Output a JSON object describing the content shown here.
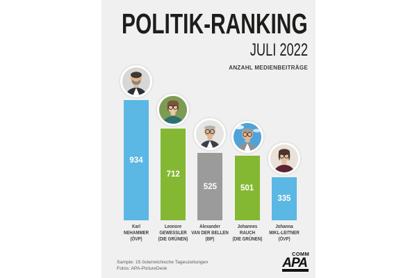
{
  "poster": {
    "title": "POLITIK-RANKING",
    "subtitle": "JULI 2022",
    "tagline": "ANZAHL MEDIENBEITRÄGE",
    "footer": {
      "sample_line": "Sample: 15 österreichische Tageszeitungen",
      "photos_line": "Fotos: APA-PictureDesk",
      "logo_main": "APA",
      "logo_sub": "COMM"
    },
    "colors": {
      "page": "#ffffff",
      "poster_background": "#f1f0f1",
      "bar_blue": "#5bb7e3",
      "bar_green": "#84b832",
      "bar_gray": "#9b9b9b",
      "title_text": "#1d1d1b",
      "value_label_text": "#ffffff",
      "category_text": "#3e3e3d",
      "note_text": "#5a5a59"
    }
  },
  "chart_data": {
    "type": "bar",
    "title": "POLITIK-RANKING",
    "subtitle": "JULI 2022",
    "ylabel": "ANZAHL MEDIENBEITRÄGE",
    "xlabel": "",
    "categories": [
      "Karl NEHAMMER (ÖVP)",
      "Leonore GEWESSLER (DIE GRÜNEN)",
      "Alexander VAN DER BELLEN (BP)",
      "Johannes RAUCH (DIE GRÜNEN)",
      "Johanna MIKL-LEITNER (ÖVP)"
    ],
    "values": [
      934,
      712,
      525,
      501,
      335
    ],
    "bar_colors": [
      "#5bb7e3",
      "#84b832",
      "#9b9b9b",
      "#84b832",
      "#5bb7e3"
    ],
    "value_labels": "inside bars, white, vertically centered",
    "axes_visible": false,
    "grid": false,
    "legend": "none",
    "annotations": "circular portrait photo above each bar",
    "source_note": "Sample: 15 österreichische Tageszeitungen"
  },
  "people": [
    {
      "first": "Karl",
      "last": "NEHAMMER",
      "party": "(ÖVP)",
      "value": 934,
      "bar_color": "#5bb7e3",
      "photo": "karl-nehammer-portrait",
      "avatar": {
        "bg": "#d8d7d3",
        "hair": "#3f3833",
        "skin": "#e3b38c",
        "top": "#2c3038",
        "beard": "#8d857b",
        "shirt": true,
        "glasses": false,
        "thinHair": false,
        "sideHair": false,
        "cloud": false
      }
    },
    {
      "first": "Leonore",
      "last": "GEWESSLER",
      "party": "(DIE GRÜNEN)",
      "value": 712,
      "bar_color": "#84b832",
      "photo": "leonore-gewessler-portrait",
      "avatar": {
        "bg": "#7c9c52",
        "hair": "#7b5639",
        "skin": "#eec6a4",
        "top": "#2f6f72",
        "beard": null,
        "shirt": false,
        "glasses": true,
        "thinHair": false,
        "sideHair": true,
        "cloud": false
      }
    },
    {
      "first": "Alexander",
      "last": "VAN DER BELLEN",
      "party": "(BP)",
      "value": 525,
      "bar_color": "#9b9b9b",
      "photo": "alexander-van-der-bellen-portrait",
      "avatar": {
        "bg": "#e6e5e2",
        "hair": "#b3b0a9",
        "skin": "#dfb692",
        "top": "#3a3f4a",
        "beard": null,
        "shirt": true,
        "glasses": true,
        "thinHair": true,
        "sideHair": false,
        "cloud": false
      }
    },
    {
      "first": "Johannes",
      "last": "RAUCH",
      "party": "(DIE GRÜNEN)",
      "value": 501,
      "bar_color": "#84b832",
      "photo": "johannes-rauch-portrait",
      "avatar": {
        "bg": "#4fa3d8",
        "hair": "#9f9c97",
        "skin": "#e2b793",
        "top": "#8e9296",
        "beard": null,
        "shirt": true,
        "glasses": true,
        "thinHair": true,
        "sideHair": false,
        "cloud": true
      }
    },
    {
      "first": "Johanna",
      "last": "MIKL-LEITNER",
      "party": "(ÖVP)",
      "value": 335,
      "bar_color": "#5bb7e3",
      "photo": "johanna-mikl-leitner-portrait",
      "avatar": {
        "bg": "#e9e2d8",
        "hair": "#4e342a",
        "skin": "#e8bfa0",
        "top": "#5a2430",
        "beard": null,
        "shirt": false,
        "glasses": true,
        "thinHair": false,
        "sideHair": true,
        "cloud": false
      }
    }
  ]
}
